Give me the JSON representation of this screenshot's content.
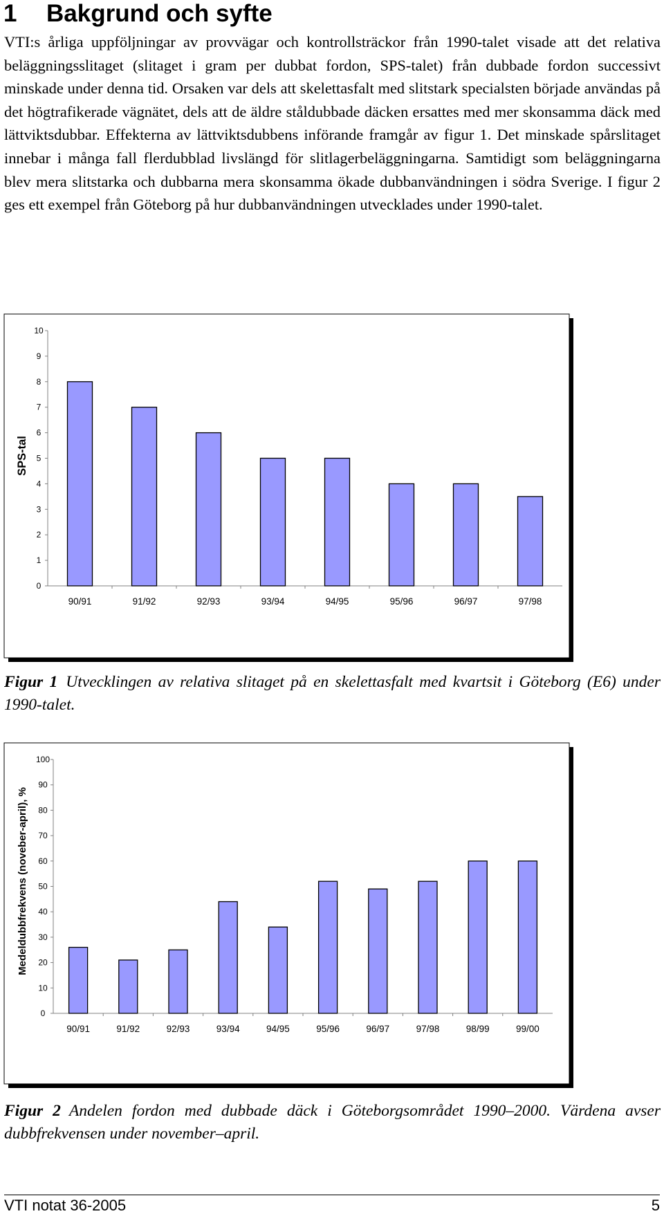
{
  "section": {
    "number": "1",
    "title": "Bakgrund och syfte"
  },
  "paragraph": "VTI:s årliga uppföljningar av provvägar och kontrollsträckor från 1990-talet visade att det relativa beläggningsslitaget (slitaget i gram per dubbat fordon, SPS-talet) från dubbade fordon successivt minskade under denna tid. Orsaken var dels att skelettasfalt med slitstark specialsten började användas på det högtrafikerade vägnätet, dels att de äldre ståldubbade däcken ersattes med mer skonsamma däck med lättviktsdubbar. Effekterna av lättviktsdubbens införande framgår av figur 1. Det minskade spårslitaget innebar i många fall flerdubblad livslängd för slitlagerbeläggningarna. Samtidigt som beläggningarna blev mera slitstarka och dubbarna mera skonsamma ökade dubbanvändningen i södra Sverige. I figur 2 ges ett exempel från Göteborg på hur dubbanvändningen utvecklades under 1990-talet.",
  "figure1": {
    "label": "Figur 1",
    "caption": "Utvecklingen av relativa slitaget på en skelettasfalt med kvartsit i Göteborg (E6) under 1990-talet."
  },
  "figure2": {
    "label": "Figur 2",
    "caption": "Andelen fordon med dubbade däck i Göteborgsområdet 1990–2000. Värdena avser dubbfrekvensen under november–april."
  },
  "footer": {
    "left": "VTI notat 36-2005",
    "right": "5"
  },
  "colors": {
    "bar_fill": "#9999ff",
    "bar_stroke": "#000000",
    "frame_shadow": "#000000"
  },
  "chart_data": [
    {
      "type": "bar",
      "title": "",
      "xlabel": "",
      "ylabel": "SPS-tal",
      "ylim": [
        0,
        10
      ],
      "yticks": [
        0,
        1,
        2,
        3,
        4,
        5,
        6,
        7,
        8,
        9,
        10
      ],
      "categories": [
        "90/91",
        "91/92",
        "92/93",
        "93/94",
        "94/95",
        "95/96",
        "96/97",
        "97/98"
      ],
      "values": [
        8,
        7,
        6,
        5,
        5,
        4,
        4,
        3.5
      ],
      "grid": false,
      "legend": "none"
    },
    {
      "type": "bar",
      "title": "",
      "xlabel": "",
      "ylabel": "Medeldubbfrekvens (noveber-april), %",
      "ylim": [
        0,
        100
      ],
      "yticks": [
        0,
        10,
        20,
        30,
        40,
        50,
        60,
        70,
        80,
        90,
        100
      ],
      "categories": [
        "90/91",
        "91/92",
        "92/93",
        "93/94",
        "94/95",
        "95/96",
        "96/97",
        "97/98",
        "98/99",
        "99/00"
      ],
      "values": [
        26,
        21,
        25,
        44,
        34,
        52,
        49,
        52,
        60,
        60
      ],
      "grid": false,
      "legend": "none"
    }
  ]
}
